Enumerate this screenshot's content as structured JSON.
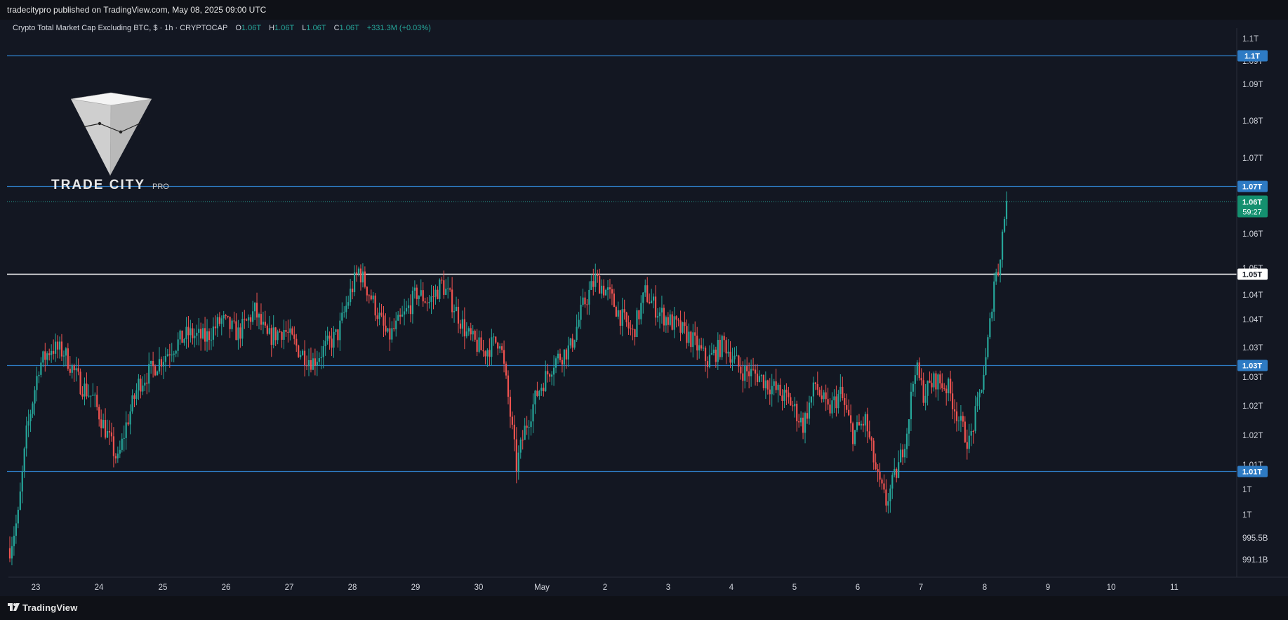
{
  "header": {
    "published_text": "tradecitypro published on TradingView.com, May 08, 2025 09:00 UTC"
  },
  "legend": {
    "symbol_text": "Crypto Total Market Cap Excluding BTC, $ · 1h · CRYPTOCAP",
    "open_label": "O",
    "open_value": "1.06T",
    "high_label": "H",
    "high_value": "1.06T",
    "low_label": "L",
    "low_value": "1.06T",
    "close_label": "C",
    "close_value": "1.06T",
    "change_text": "+331.3M (+0.03%)"
  },
  "watermark": {
    "brand": "TRADE CITY",
    "brand_suffix": "PRO"
  },
  "footer": {
    "brand": "TradingView"
  },
  "colors": {
    "background": "#131722",
    "up": "#26a69a",
    "down": "#ef5350",
    "level_line": "#2e7bc4",
    "pivot_line": "#ffffff",
    "price_badge": "#14906f"
  },
  "chart_data": {
    "type": "candlestick",
    "title": "Crypto Total Market Cap Excluding BTC, $ · 1h · CRYPTOCAP",
    "x_ticks": [
      "23",
      "24",
      "25",
      "26",
      "27",
      "28",
      "29",
      "30",
      "May",
      "2",
      "3",
      "4",
      "5",
      "6",
      "7",
      "8",
      "9",
      "10",
      "11"
    ],
    "y_ticks": [
      "1.1T",
      "1.09T",
      "1.09T",
      "1.08T",
      "1.07T",
      "1.06T",
      "1.05T",
      "1.04T",
      "1.04T",
      "1.03T",
      "1.03T",
      "1.02T",
      "1.02T",
      "1.01T",
      "1T",
      "1T",
      "995.5B",
      "991.1B"
    ],
    "ylim": [
      0.9875,
      1.1019
    ],
    "horizontal_levels": [
      {
        "label": "1.1T",
        "value": 1.0981,
        "style": "blue"
      },
      {
        "label": "1.07T",
        "value": 1.0694,
        "style": "blue"
      },
      {
        "label": "1.05T",
        "value": 1.0501,
        "style": "white"
      },
      {
        "label": "1.03T",
        "value": 1.0302,
        "style": "blue"
      },
      {
        "label": "1.01T",
        "value": 1.0069,
        "style": "blue"
      }
    ],
    "last_price": {
      "label": "1.06T",
      "countdown": "59:27",
      "value": 1.0661
    },
    "price_path_anchors": [
      {
        "t": 0,
        "v": 0.99
      },
      {
        "t": 4,
        "v": 0.997
      },
      {
        "t": 8,
        "v": 1.015
      },
      {
        "t": 14,
        "v": 1.03
      },
      {
        "t": 20,
        "v": 1.034
      },
      {
        "t": 26,
        "v": 1.033
      },
      {
        "t": 34,
        "v": 1.026
      },
      {
        "t": 40,
        "v": 1.023
      },
      {
        "t": 46,
        "v": 1.016
      },
      {
        "t": 52,
        "v": 1.009
      },
      {
        "t": 56,
        "v": 1.017
      },
      {
        "t": 62,
        "v": 1.026
      },
      {
        "t": 70,
        "v": 1.03
      },
      {
        "t": 78,
        "v": 1.034
      },
      {
        "t": 86,
        "v": 1.037
      },
      {
        "t": 94,
        "v": 1.036
      },
      {
        "t": 102,
        "v": 1.04
      },
      {
        "t": 110,
        "v": 1.037
      },
      {
        "t": 118,
        "v": 1.042
      },
      {
        "t": 124,
        "v": 1.036
      },
      {
        "t": 132,
        "v": 1.038
      },
      {
        "t": 140,
        "v": 1.033
      },
      {
        "t": 146,
        "v": 1.031
      },
      {
        "t": 152,
        "v": 1.034
      },
      {
        "t": 158,
        "v": 1.037
      },
      {
        "t": 164,
        "v": 1.046
      },
      {
        "t": 168,
        "v": 1.051
      },
      {
        "t": 174,
        "v": 1.045
      },
      {
        "t": 182,
        "v": 1.036
      },
      {
        "t": 190,
        "v": 1.041
      },
      {
        "t": 196,
        "v": 1.046
      },
      {
        "t": 202,
        "v": 1.044
      },
      {
        "t": 208,
        "v": 1.048
      },
      {
        "t": 214,
        "v": 1.043
      },
      {
        "t": 220,
        "v": 1.037
      },
      {
        "t": 228,
        "v": 1.033
      },
      {
        "t": 236,
        "v": 1.036
      },
      {
        "t": 240,
        "v": 1.023
      },
      {
        "t": 244,
        "v": 1.008
      },
      {
        "t": 248,
        "v": 1.016
      },
      {
        "t": 254,
        "v": 1.024
      },
      {
        "t": 262,
        "v": 1.031
      },
      {
        "t": 270,
        "v": 1.034
      },
      {
        "t": 276,
        "v": 1.043
      },
      {
        "t": 282,
        "v": 1.049
      },
      {
        "t": 288,
        "v": 1.046
      },
      {
        "t": 294,
        "v": 1.041
      },
      {
        "t": 300,
        "v": 1.037
      },
      {
        "t": 306,
        "v": 1.046
      },
      {
        "t": 312,
        "v": 1.042
      },
      {
        "t": 320,
        "v": 1.039
      },
      {
        "t": 328,
        "v": 1.036
      },
      {
        "t": 336,
        "v": 1.031
      },
      {
        "t": 344,
        "v": 1.035
      },
      {
        "t": 352,
        "v": 1.029
      },
      {
        "t": 360,
        "v": 1.028
      },
      {
        "t": 368,
        "v": 1.025
      },
      {
        "t": 376,
        "v": 1.022
      },
      {
        "t": 382,
        "v": 1.017
      },
      {
        "t": 388,
        "v": 1.026
      },
      {
        "t": 394,
        "v": 1.02
      },
      {
        "t": 400,
        "v": 1.024
      },
      {
        "t": 406,
        "v": 1.015
      },
      {
        "t": 412,
        "v": 1.018
      },
      {
        "t": 418,
        "v": 1.005
      },
      {
        "t": 422,
        "v": 1.0
      },
      {
        "t": 428,
        "v": 1.008
      },
      {
        "t": 432,
        "v": 1.016
      },
      {
        "t": 436,
        "v": 1.03
      },
      {
        "t": 440,
        "v": 1.024
      },
      {
        "t": 446,
        "v": 1.027
      },
      {
        "t": 452,
        "v": 1.025
      },
      {
        "t": 458,
        "v": 1.017
      },
      {
        "t": 462,
        "v": 1.013
      },
      {
        "t": 466,
        "v": 1.021
      },
      {
        "t": 470,
        "v": 1.031
      },
      {
        "t": 472,
        "v": 1.039
      },
      {
        "t": 474,
        "v": 1.049
      },
      {
        "t": 476,
        "v": 1.051
      },
      {
        "t": 478,
        "v": 1.059
      },
      {
        "t": 480,
        "v": 1.066
      }
    ]
  }
}
